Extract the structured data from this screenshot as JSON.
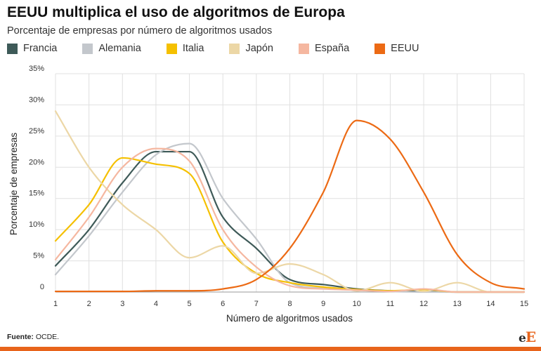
{
  "header": {
    "title": "EEUU multiplica el uso de algoritmos de Europa",
    "subtitle": "Porcentaje de empresas por número de algoritmos usados"
  },
  "footer": {
    "source_label": "Fuente:",
    "source_value": "OCDE.",
    "logo_text_1": "e",
    "logo_text_2": "E"
  },
  "colors": {
    "brand": "#e8641b",
    "grid": "#e0e0e0"
  },
  "chart_data": {
    "type": "line",
    "title": "EEUU multiplica el uso de algoritmos de Europa",
    "subtitle": "Porcentaje de empresas por número de algoritmos usados",
    "xlabel": "Número de algoritmos usados",
    "ylabel": "Porcentaje de empresas",
    "x": [
      1,
      2,
      3,
      4,
      5,
      6,
      7,
      8,
      9,
      10,
      11,
      12,
      13,
      14,
      15
    ],
    "xlim": [
      1,
      15
    ],
    "ylim": [
      0,
      35
    ],
    "yticks": [
      0,
      5,
      10,
      15,
      20,
      25,
      30,
      35
    ],
    "ytick_labels": [
      "0",
      "5%",
      "10%",
      "15%",
      "20%",
      "25%",
      "30%",
      "35%"
    ],
    "grid": true,
    "legend_position": "top-left",
    "series": [
      {
        "name": "Francia",
        "color": "#3e5a58",
        "values": [
          4.2,
          10,
          17.5,
          22.5,
          22.5,
          12,
          7,
          2,
          1.2,
          0.5,
          0.2,
          0.1,
          0,
          0,
          0
        ]
      },
      {
        "name": "Alemania",
        "color": "#c3c7cc",
        "values": [
          2.8,
          9,
          16,
          22,
          23.8,
          15,
          8.5,
          1.5,
          0.6,
          0.3,
          0.1,
          0,
          0,
          0,
          0
        ]
      },
      {
        "name": "Italia",
        "color": "#f5c000",
        "values": [
          8.2,
          14,
          21.5,
          20.5,
          19,
          8,
          3,
          1.5,
          0.8,
          0.4,
          0.2,
          0.4,
          0,
          0,
          0
        ]
      },
      {
        "name": "Japón",
        "color": "#ecd7a6",
        "values": [
          29,
          20,
          14,
          10,
          5.5,
          7.4,
          3,
          4.5,
          2.8,
          0.2,
          1.5,
          0.1,
          1.5,
          0,
          0
        ]
      },
      {
        "name": "España",
        "color": "#f5b7a0",
        "values": [
          5.2,
          12,
          20,
          23,
          21,
          10,
          4,
          1,
          0.5,
          0.3,
          0.1,
          0.5,
          0,
          0,
          0
        ]
      },
      {
        "name": "EEUU",
        "color": "#ec6a14",
        "values": [
          0.1,
          0.1,
          0.1,
          0.2,
          0.2,
          0.5,
          2,
          7,
          16,
          27.5,
          24.5,
          16,
          6,
          1.5,
          0.5
        ]
      }
    ]
  }
}
